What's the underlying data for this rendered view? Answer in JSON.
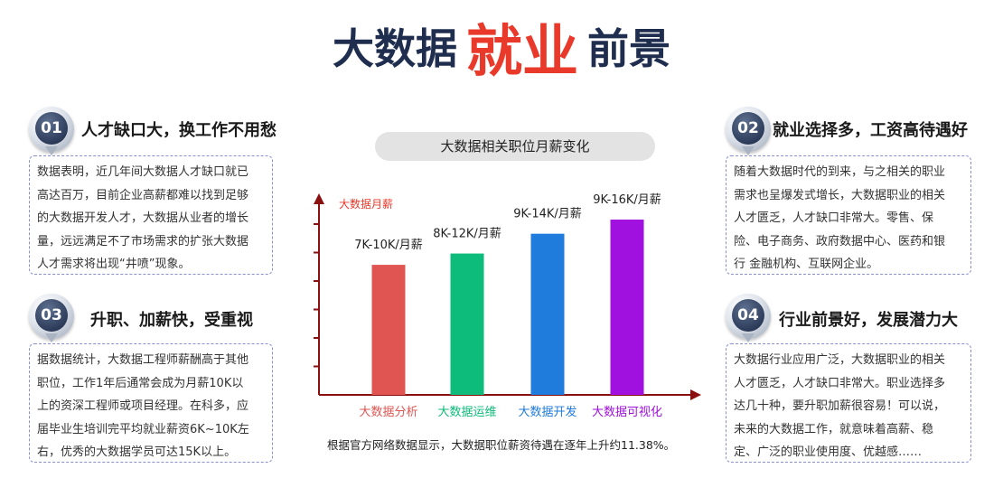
{
  "title": {
    "part1": "大数据",
    "part2": "就业",
    "part3": "前景"
  },
  "sections": [
    {
      "num": "01",
      "heading": "人才缺口大，换工作不用愁",
      "lines": [
        "数据表明，近几年间大数据人才缺口就已",
        "高达百万，目前企业高薪都难以找到足够",
        "的大数据开发人才，大数据从业者的增长",
        "量，远远满足不了市场需求的扩张大数据",
        "人才需求将出现“井喷”现象。"
      ]
    },
    {
      "num": "02",
      "heading": "就业选择多，工资高待遇好",
      "lines": [
        "随着大数据时代的到来，与之相关的职业",
        "需求也呈爆发式增长，大数据职业的相关",
        "人才匮乏，人才缺口非常大。零售、保",
        "险、电子商务、政府数据中心、医药和银",
        "行 金融机构、互联网企业。"
      ]
    },
    {
      "num": "03",
      "heading": "升职、加薪快，受重视",
      "lines": [
        "据数据统计，大数据工程师薪酬高于其他",
        "职位，工作1年后通常会成为月薪10K以",
        "上的资深工程师或项目经理。在科多，应",
        "届毕业生培训完平均就业薪资6K~10K左",
        "右，优秀的大数据学员可达15K以上。"
      ]
    },
    {
      "num": "04",
      "heading": "行业前景好，发展潜力大",
      "lines": [
        "大数据行业应用广泛，大数据职业的相关",
        "人才匮乏，人才缺口非常大。职业选择多",
        "达几十种，要升职加薪很容易！可以说，",
        "未来的大数据工作，就意味着高薪、稳",
        "定、广泛的职业使用度、优越感……"
      ]
    }
  ],
  "chart_data": {
    "type": "bar",
    "title": "大数据相关职位月薪变化",
    "ylabel": "大数据月薪",
    "categories": [
      "大数据分析",
      "大数据运维",
      "大数据开发",
      "大数据可视化"
    ],
    "values": [
      46,
      50,
      57,
      62
    ],
    "value_labels": [
      "7K-10K/月薪",
      "8K-12K/月薪",
      "9K-14K/月薪",
      "9K-16K/月薪"
    ],
    "ylim": [
      0,
      70
    ],
    "grid": false,
    "colors": [
      "#e05552",
      "#0dbb7a",
      "#1f7bdc",
      "#a010df"
    ]
  },
  "caption": "根据官方网络数据显示，大数据职位薪资待遇在逐年上升约11.38%。"
}
